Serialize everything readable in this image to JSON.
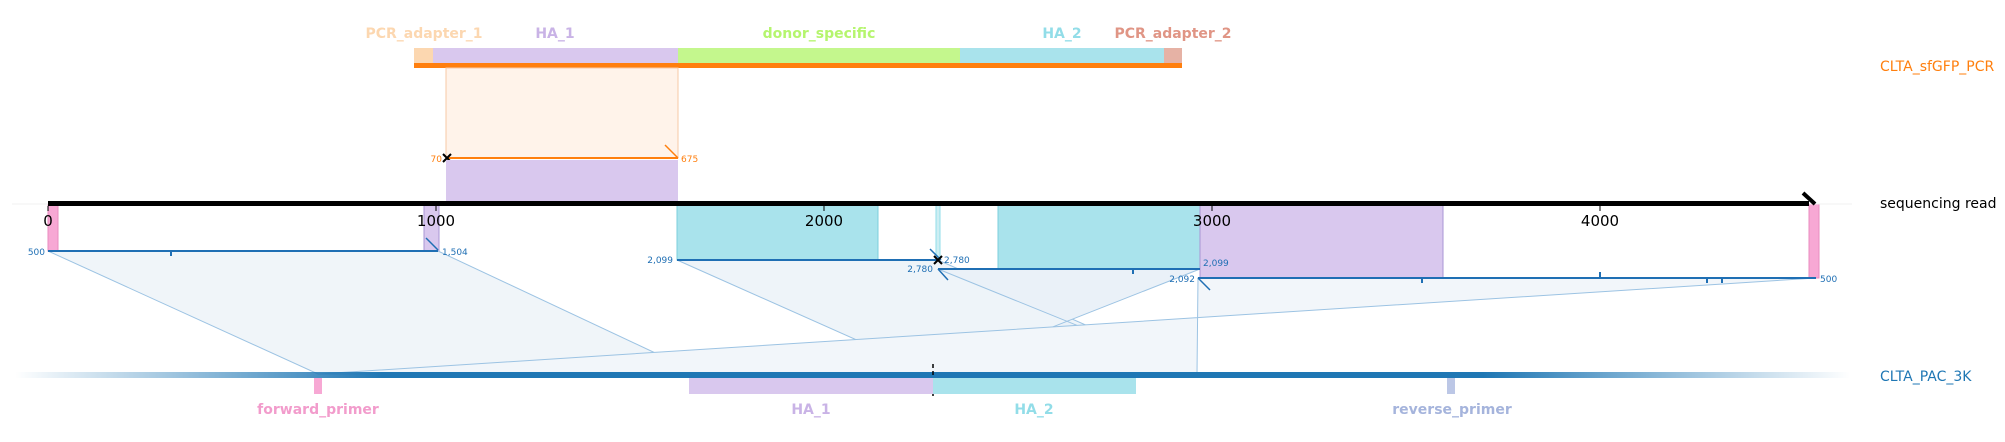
{
  "tracks": {
    "pcr": "CLTA_sfGFP_PCR",
    "read": "sequencing read",
    "genome": "CLTA_PAC_3K"
  },
  "top_features": {
    "pcr_adapter_1": "PCR_adapter_1",
    "ha_1": "HA_1",
    "donor_specific": "donor_specific",
    "ha_2": "HA_2",
    "pcr_adapter_2": "PCR_adapter_2"
  },
  "bottom_features": {
    "forward_primer": "forward_primer",
    "ha_1": "HA_1",
    "ha_2": "HA_2",
    "reverse_primer": "reverse_primer"
  },
  "axis_ticks": [
    "0",
    "1000",
    "2000",
    "3000",
    "4000"
  ],
  "alignment_labels": {
    "pcr_start": "70",
    "pcr_end": "675",
    "a1_start": "500",
    "a1_end": "1,504",
    "a2_start": "2,099",
    "a2_end": "2,780",
    "a3_start": "2,780",
    "a3_end": "2,099",
    "a4_start": "2,092",
    "a4_end": "500"
  },
  "colors": {
    "pcr_track": "#ff7f0e",
    "genome_track": "#1f77b4",
    "alignment": "#1f6fb4",
    "ha_1": "#c9b3e6",
    "ha_2": "#92dde8",
    "donor_specific": "#b5f56e",
    "pcr_adapter_1": "#fcd7b0",
    "pcr_adapter_2": "#e3a99a",
    "forward_primer": "#f7a8d4",
    "reverse_primer": "#a5b4dc"
  }
}
